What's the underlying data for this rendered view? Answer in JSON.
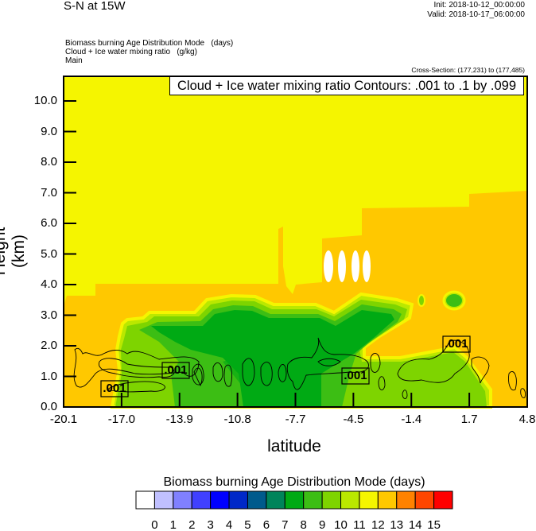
{
  "header": {
    "title": "S-N at 15W",
    "init": "Init: 2018-10-12_00:00:00",
    "valid": "Valid: 2018-10-17_06:00:00",
    "fields": [
      "Biomass burning Age Distribution Mode   (days)",
      "Cloud + Ice water mixing ratio   (g/kg)",
      "Main"
    ],
    "cross_section": "Cross-Section: (177,231) to (177,485)"
  },
  "chart_data": {
    "type": "heatmap",
    "title": "Cloud + Ice water mixing ratio Contours: .001 to .1 by .099",
    "xlabel": "latitude",
    "ylabel": "Height (km)",
    "xlim": [
      -20.1,
      4.8
    ],
    "ylim": [
      0,
      10.8
    ],
    "xticks": [
      "-20.1",
      "-17.0",
      "-13.9",
      "-10.8",
      "-7.7",
      "-4.5",
      "-1.4",
      "1.7",
      "4.8"
    ],
    "yticks": [
      "0.0",
      "1.0",
      "2.0",
      "3.0",
      "4.0",
      "5.0",
      "6.0",
      "7.0",
      "8.0",
      "9.0",
      "10.0"
    ],
    "contour_labels": [
      ".001",
      ".001",
      ".001",
      ".001"
    ],
    "colorbar": {
      "title": "Biomass burning Age Distribution Mode  (days)",
      "levels": [
        "0",
        "1",
        "2",
        "3",
        "4",
        "5",
        "6",
        "7",
        "8",
        "9",
        "10",
        "11",
        "12",
        "13",
        "14",
        "15"
      ],
      "colors": [
        "#ffffff",
        "#c0c0ff",
        "#8080ff",
        "#4040ff",
        "#0000ff",
        "#0028c8",
        "#005a8c",
        "#00845a",
        "#00aa14",
        "#3cbe14",
        "#7ed400",
        "#bae800",
        "#f5f500",
        "#ffc800",
        "#ff8200",
        "#ff4600",
        "#ff0000"
      ]
    }
  }
}
